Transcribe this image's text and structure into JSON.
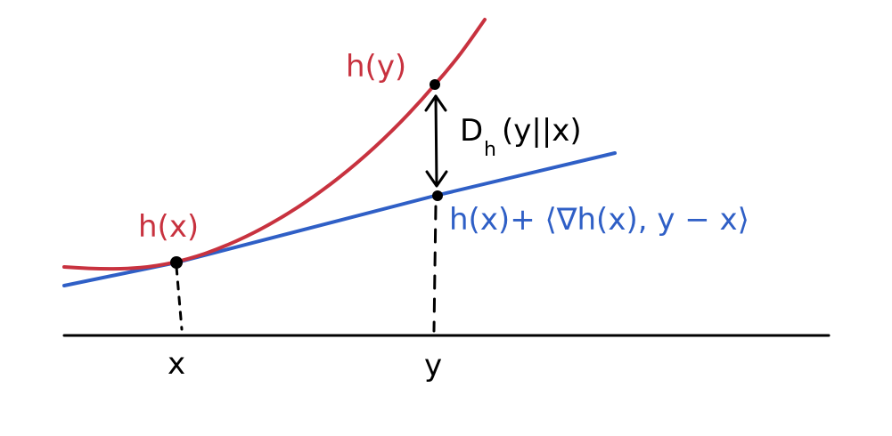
{
  "labels": {
    "h_y": "h(y)",
    "h_x": "h(x)",
    "divergence_main": "D",
    "divergence_sub": "h",
    "divergence_args": "(y||x)",
    "tangent": "h(x)+ ⟨∇h(x), y − x⟩",
    "x_tick": "x",
    "y_tick": "y"
  },
  "colors": {
    "curve": "#c8323f",
    "tangent": "#2f5fc6",
    "ink": "#000000",
    "background": "#ffffff"
  }
}
